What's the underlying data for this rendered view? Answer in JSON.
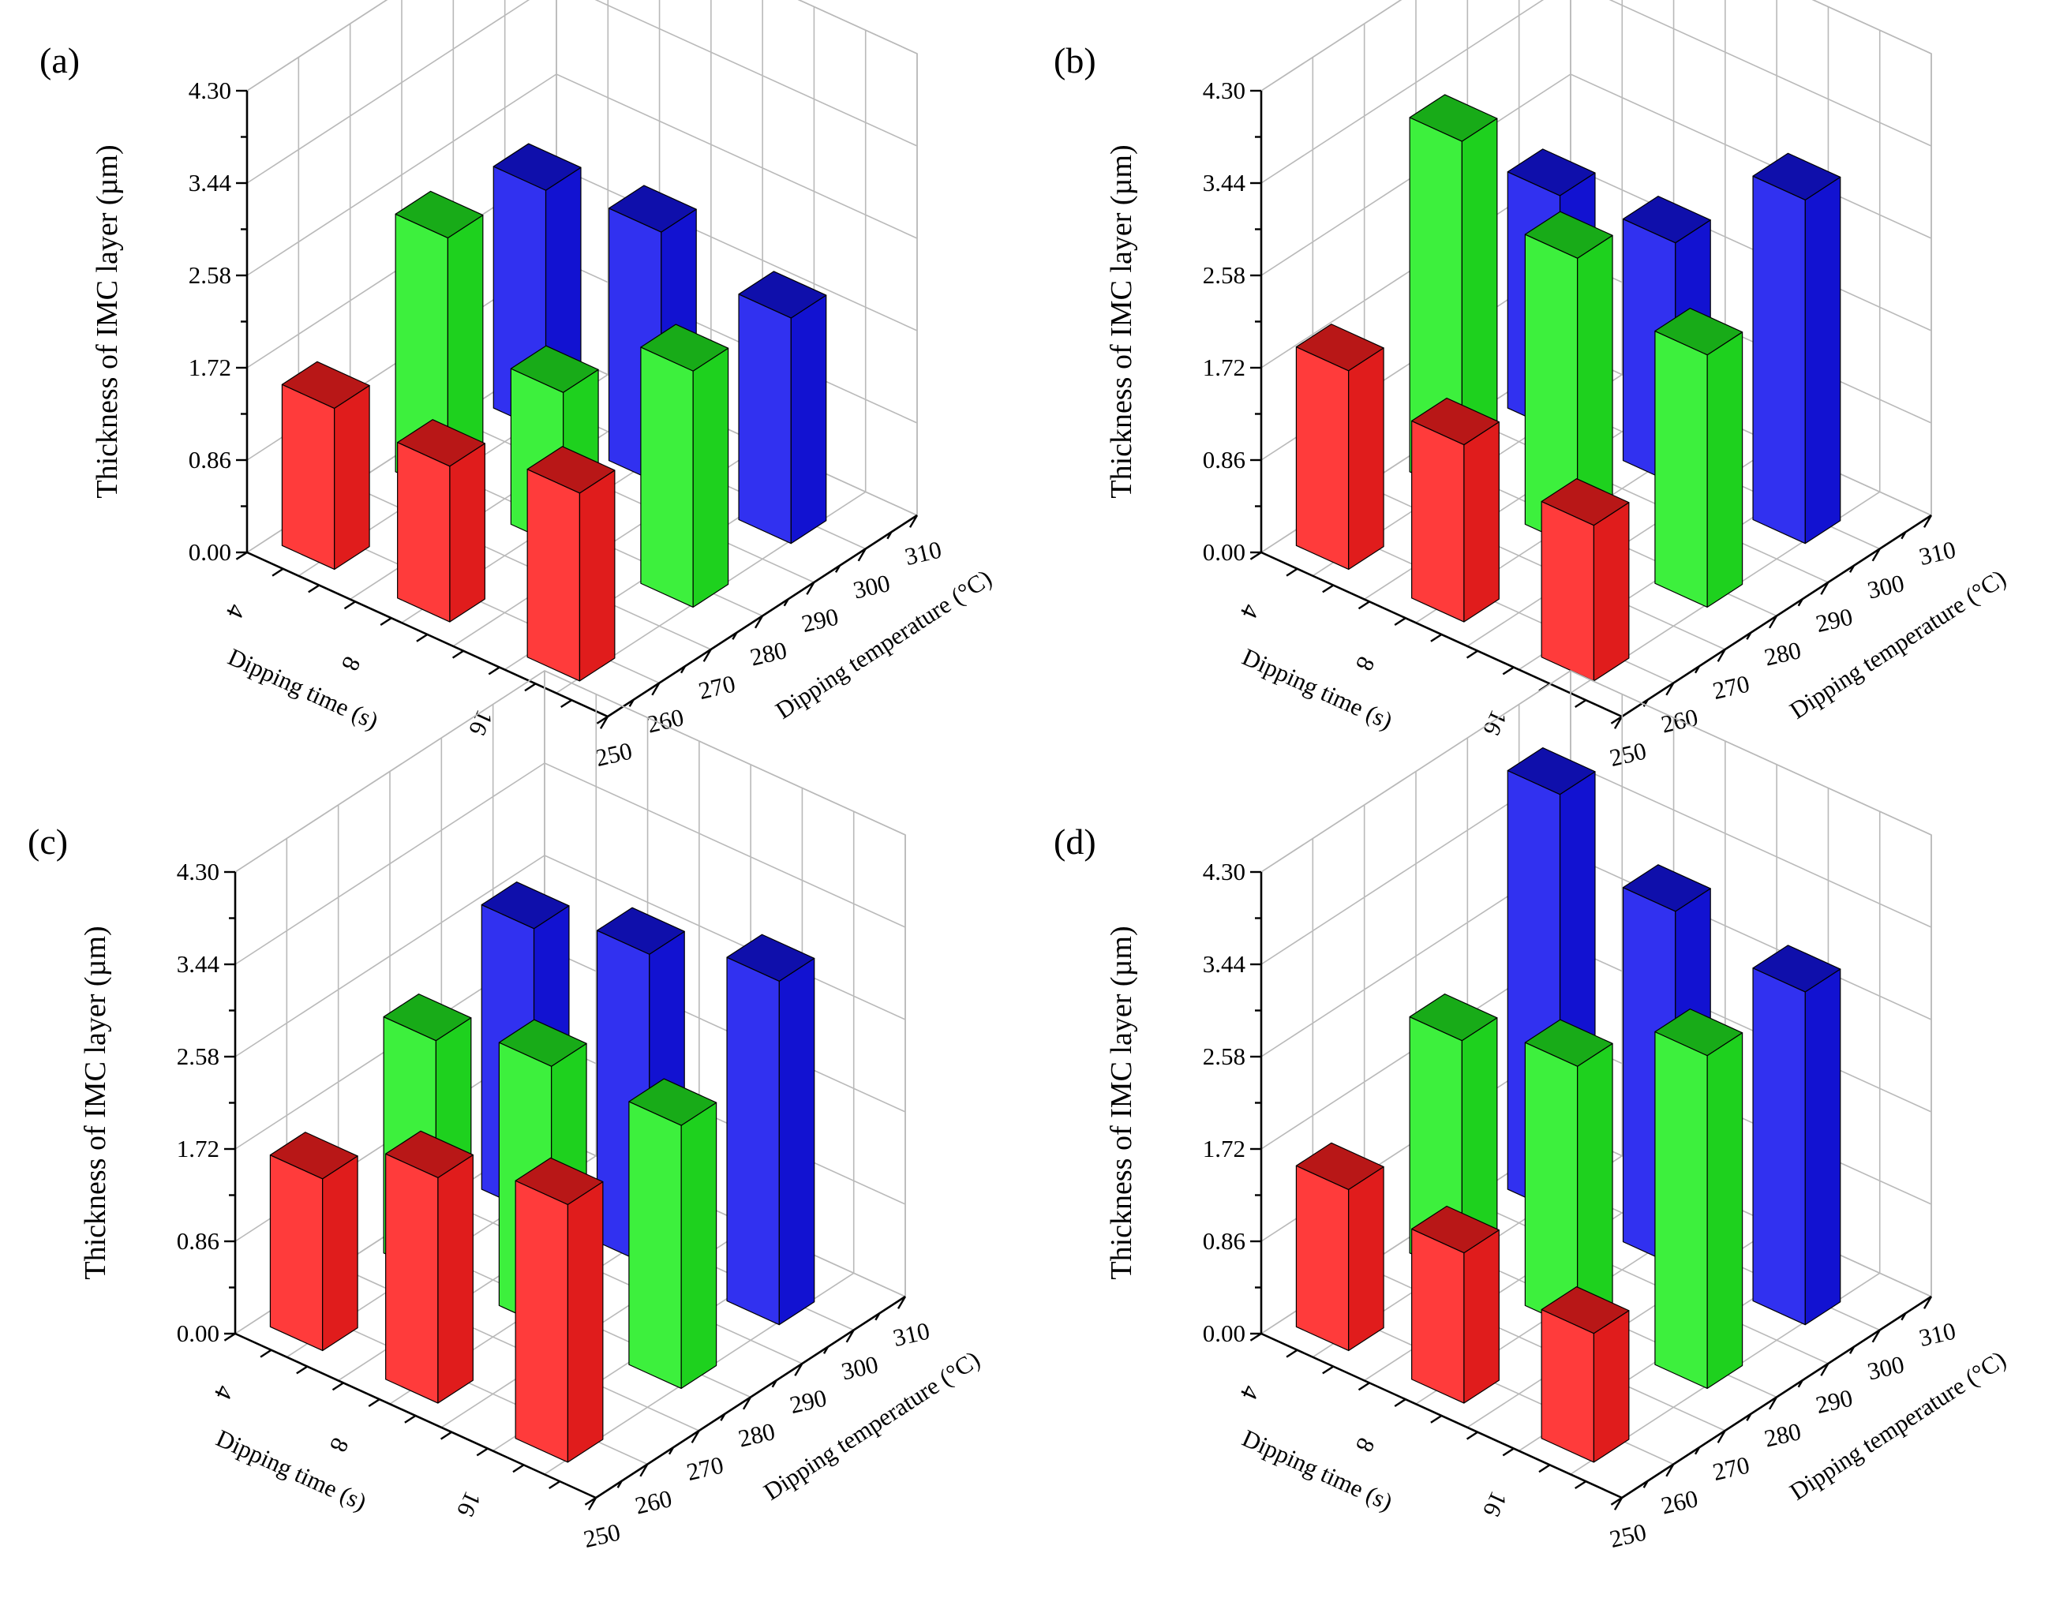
{
  "chart_data": [
    {
      "panel": "(a)",
      "type": "bar3d",
      "zlabel": "Thickness of IMC layer (µm)",
      "xlabel": "Dipping time (s)",
      "ylabel": "Dipping temperature (°C)",
      "z_ticks": [
        "0.00",
        "0.86",
        "1.72",
        "2.58",
        "3.44",
        "4.30"
      ],
      "zlim": [
        0,
        4.3
      ],
      "time_ticks": [
        "4",
        "8",
        "16"
      ],
      "temp_ticks": [
        "250",
        "260",
        "270",
        "280",
        "290",
        "300",
        "310"
      ],
      "series": [
        {
          "name": "250 °C",
          "color": "#ff2020",
          "points": [
            {
              "time": 4,
              "value": 1.5
            },
            {
              "time": 8,
              "value": 1.45
            },
            {
              "time": 16,
              "value": 1.75
            }
          ]
        },
        {
          "name": "280 °C",
          "color": "#22ee22",
          "points": [
            {
              "time": 4,
              "value": 2.4
            },
            {
              "time": 8,
              "value": 1.45
            },
            {
              "time": 16,
              "value": 2.2
            }
          ]
        },
        {
          "name": "310 °C",
          "color": "#1515ee",
          "points": [
            {
              "time": 4,
              "value": 2.25
            },
            {
              "time": 8,
              "value": 2.35
            },
            {
              "time": 16,
              "value": 2.1
            }
          ]
        }
      ]
    },
    {
      "panel": "(b)",
      "type": "bar3d",
      "zlabel": "Thickness of IMC layer (µm)",
      "xlabel": "Dipping time (s)",
      "ylabel": "Dipping temperature (°C)",
      "z_ticks": [
        "0.00",
        "0.86",
        "1.72",
        "2.58",
        "3.44",
        "4.30"
      ],
      "zlim": [
        0,
        4.3
      ],
      "time_ticks": [
        "4",
        "8",
        "16"
      ],
      "temp_ticks": [
        "250",
        "260",
        "270",
        "280",
        "290",
        "300",
        "310"
      ],
      "series": [
        {
          "name": "250 °C",
          "color": "#ff2020",
          "points": [
            {
              "time": 4,
              "value": 1.85
            },
            {
              "time": 8,
              "value": 1.65
            },
            {
              "time": 16,
              "value": 1.45
            }
          ]
        },
        {
          "name": "280 °C",
          "color": "#22ee22",
          "points": [
            {
              "time": 4,
              "value": 3.3
            },
            {
              "time": 8,
              "value": 2.7
            },
            {
              "time": 16,
              "value": 2.35
            }
          ]
        },
        {
          "name": "310 °C",
          "color": "#1515ee",
          "points": [
            {
              "time": 4,
              "value": 2.2
            },
            {
              "time": 8,
              "value": 2.25
            },
            {
              "time": 16,
              "value": 3.2
            }
          ]
        }
      ]
    },
    {
      "panel": "(c)",
      "type": "bar3d",
      "zlabel": "Thickness of IMC layer (µm)",
      "xlabel": "Dipping time (s)",
      "ylabel": "Dipping temperature (°C)",
      "z_ticks": [
        "0.00",
        "0.86",
        "1.72",
        "2.58",
        "3.44",
        "4.30"
      ],
      "zlim": [
        0,
        4.3
      ],
      "time_ticks": [
        "4",
        "8",
        "16"
      ],
      "temp_ticks": [
        "250",
        "260",
        "270",
        "280",
        "290",
        "300",
        "310"
      ],
      "series": [
        {
          "name": "250 °C",
          "color": "#ff2020",
          "points": [
            {
              "time": 4,
              "value": 1.6
            },
            {
              "time": 8,
              "value": 2.1
            },
            {
              "time": 16,
              "value": 2.4
            }
          ]
        },
        {
          "name": "280 °C",
          "color": "#22ee22",
          "points": [
            {
              "time": 4,
              "value": 2.2
            },
            {
              "time": 8,
              "value": 2.45
            },
            {
              "time": 16,
              "value": 2.45
            }
          ]
        },
        {
          "name": "310 °C",
          "color": "#1515ee",
          "points": [
            {
              "time": 4,
              "value": 2.65
            },
            {
              "time": 8,
              "value": 2.9
            },
            {
              "time": 16,
              "value": 3.2
            }
          ]
        }
      ]
    },
    {
      "panel": "(d)",
      "type": "bar3d",
      "zlabel": "Thickness of IMC layer (µm)",
      "xlabel": "Dipping time (s)",
      "ylabel": "Dipping temperature (°C)",
      "z_ticks": [
        "0.00",
        "0.86",
        "1.72",
        "2.58",
        "3.44",
        "4.30"
      ],
      "zlim": [
        0,
        4.3
      ],
      "time_ticks": [
        "4",
        "8",
        "16"
      ],
      "temp_ticks": [
        "250",
        "260",
        "270",
        "280",
        "290",
        "300",
        "310"
      ],
      "series": [
        {
          "name": "250 °C",
          "color": "#ff2020",
          "points": [
            {
              "time": 4,
              "value": 1.5
            },
            {
              "time": 8,
              "value": 1.4
            },
            {
              "time": 16,
              "value": 1.2
            }
          ]
        },
        {
          "name": "280 °C",
          "color": "#22ee22",
          "points": [
            {
              "time": 4,
              "value": 2.2
            },
            {
              "time": 8,
              "value": 2.45
            },
            {
              "time": 16,
              "value": 3.1
            }
          ]
        },
        {
          "name": "310 °C",
          "color": "#1515ee",
          "points": [
            {
              "time": 4,
              "value": 3.9
            },
            {
              "time": 8,
              "value": 3.3
            },
            {
              "time": 16,
              "value": 3.1
            }
          ]
        }
      ]
    }
  ]
}
